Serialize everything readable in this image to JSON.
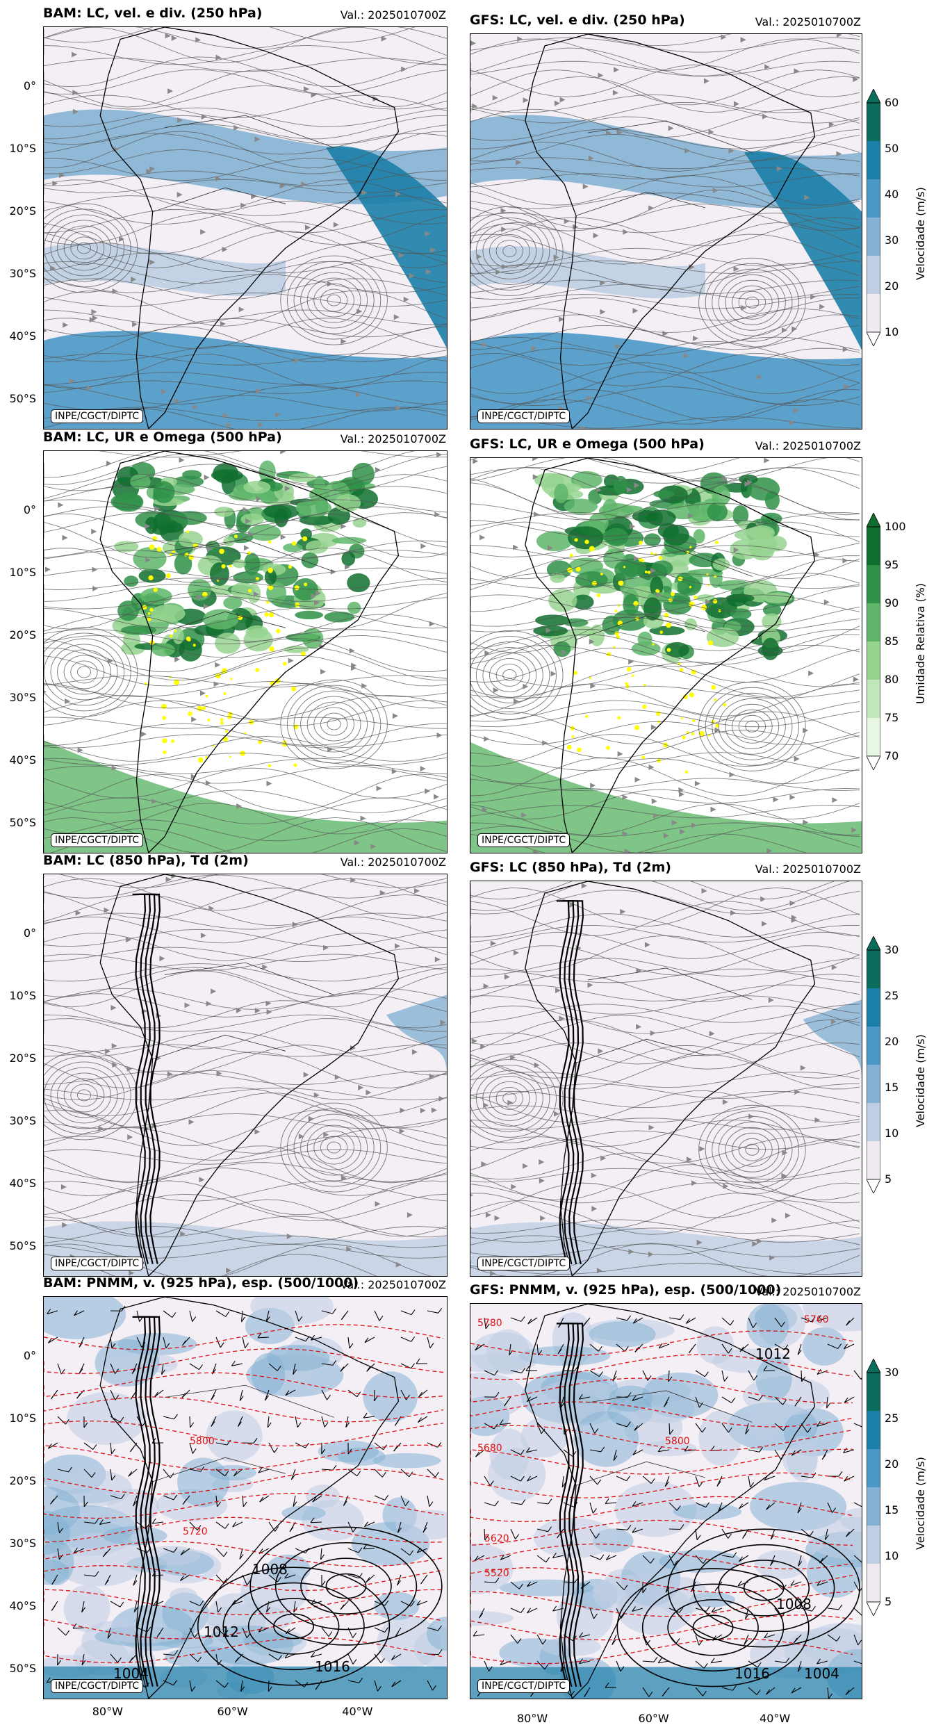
{
  "valid_prefix": "Val.: 2025010700Z",
  "credit": "INPE/CGCT/DIPTC",
  "lat_labels": [
    "0°",
    "10°S",
    "20°S",
    "30°S",
    "40°S",
    "50°S"
  ],
  "lon_labels": [
    "80°W",
    "60°W",
    "40°W"
  ],
  "rows": [
    {
      "bam_title": "BAM: LC, vel. e div. (250 hPa)",
      "gfs_title": "GFS: LC, vel. e div. (250 hPa)",
      "cbar_label": "Velocidade (m/s)",
      "cbar_ticks": [
        "10",
        "20",
        "30",
        "40",
        "50",
        "60"
      ],
      "cbar_colors": [
        "#f2eaf2",
        "#bfcee3",
        "#85b2d4",
        "#4a98c6",
        "#1c7fa9",
        "#0b6e5c"
      ]
    },
    {
      "bam_title": "BAM: LC, UR e Omega (500 hPa)",
      "gfs_title": "GFS: LC, UR e Omega (500 hPa)",
      "cbar_label": "Umidade Relativa (%)",
      "cbar_ticks": [
        "70",
        "75",
        "80",
        "85",
        "90",
        "95",
        "100"
      ],
      "cbar_colors": [
        "#e8f6e4",
        "#c3e7bc",
        "#96d38f",
        "#5fb66a",
        "#2f9148",
        "#0f6e2e"
      ]
    },
    {
      "bam_title": "BAM: LC (850 hPa), Td (2m)",
      "gfs_title": "GFS: LC (850 hPa), Td (2m)",
      "cbar_label": "Velocidade (m/s)",
      "cbar_ticks": [
        "5",
        "10",
        "15",
        "20",
        "25",
        "30"
      ],
      "cbar_colors": [
        "#f2eaf2",
        "#bfcee3",
        "#85b2d4",
        "#4a98c6",
        "#1c7fa9",
        "#0b6e5c"
      ]
    },
    {
      "bam_title": "BAM: PNMM, v. (925 hPa), esp. (500/1000)",
      "gfs_title": "GFS: PNMM, v. (925 hPa), esp. (500/1000)",
      "cbar_label": "Velocidade (m/s)",
      "cbar_ticks": [
        "5",
        "10",
        "15",
        "20",
        "25",
        "30"
      ],
      "cbar_colors": [
        "#f2eaf2",
        "#bfcee3",
        "#85b2d4",
        "#4a98c6",
        "#1c7fa9",
        "#0b6e5c"
      ]
    }
  ],
  "contour_labels_bam4": [
    "1012",
    "1016",
    "1008",
    "1004",
    "5800",
    "5720"
  ],
  "contour_labels_gfs4": [
    "1012",
    "1016",
    "1008",
    "1004",
    "5780",
    "5800",
    "5760",
    "5680",
    "5620",
    "5520"
  ]
}
